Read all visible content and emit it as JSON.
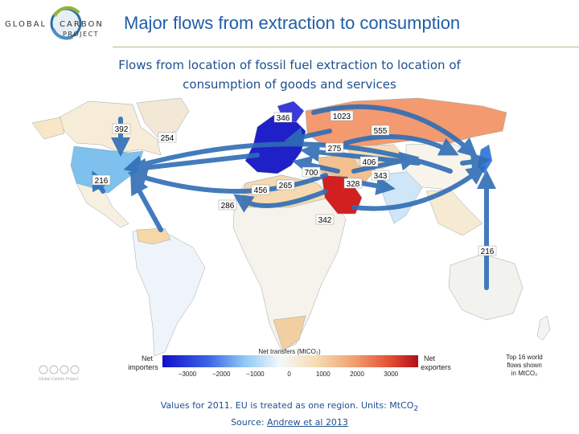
{
  "header": {
    "logo": {
      "word1": "GLOBAL",
      "word2": "CARBON",
      "word3": "PROJECT"
    },
    "title": "Major flows from extraction to consumption"
  },
  "subtitle": {
    "line1": "Flows from location of fossil fuel extraction to location of",
    "line2": "consumption of goods and services"
  },
  "map": {
    "flow_labels": [
      "392",
      "254",
      "216",
      "346",
      "1023",
      "555",
      "275",
      "406",
      "343",
      "700",
      "328",
      "265",
      "456",
      "286",
      "342",
      "216"
    ],
    "legend": {
      "left_label_1": "Net",
      "left_label_2": "importers",
      "right_label_1": "Net",
      "right_label_2": "exporters",
      "title": "Net transfers (MtCO₂)",
      "ticks": [
        "−3000",
        "−2000",
        "−1000",
        "0",
        "1000",
        "2000",
        "3000"
      ],
      "note_1": "Top 16 world",
      "note_2": "flows shown",
      "note_3": "in MtCO₂"
    },
    "watermark": "Global Carbon Project",
    "colors": {
      "importer": "#1a1ad6",
      "neutral": "#f2f5fa",
      "exporter": "#d01a1a",
      "arrow": "#2f6db5"
    }
  },
  "footer": {
    "line1_prefix": "Values for 2011. EU is treated as one region. Units: MtCO",
    "line1_sub": "2",
    "line2_prefix": "Source: ",
    "source_link": "Andrew et al 2013"
  }
}
